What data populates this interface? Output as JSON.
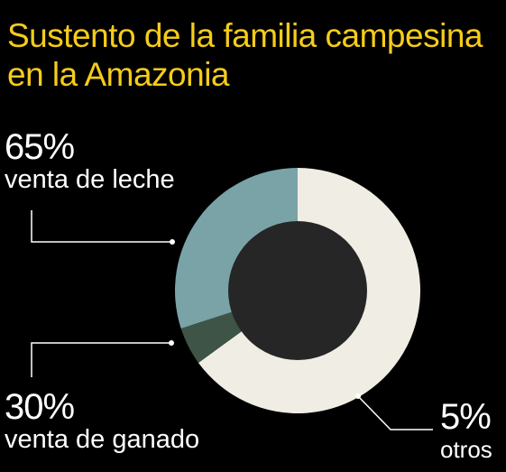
{
  "title": {
    "line1": "Sustento de la familia campesina",
    "line2": "en la Amazonia"
  },
  "colors": {
    "background": "#000000",
    "title": "#f5cc1a",
    "leche": "#f0eee4",
    "ganado": "#79a3a7",
    "otros": "#3e5447",
    "center": "#262626",
    "text": "#ffffff"
  },
  "chart_data": {
    "type": "pie",
    "style": "donut",
    "title": "Sustento de la familia campesina en la Amazonia",
    "unit": "%",
    "slices": [
      {
        "key": "leche",
        "percent_label": "65%",
        "label": "venta de leche",
        "value": 65,
        "color": "#f0eee4"
      },
      {
        "key": "otros",
        "percent_label": "5%",
        "label": "otros",
        "value": 5,
        "color": "#3e5447"
      },
      {
        "key": "ganado",
        "percent_label": "30%",
        "label": "venta de ganado",
        "value": 30,
        "color": "#79a3a7"
      }
    ]
  }
}
